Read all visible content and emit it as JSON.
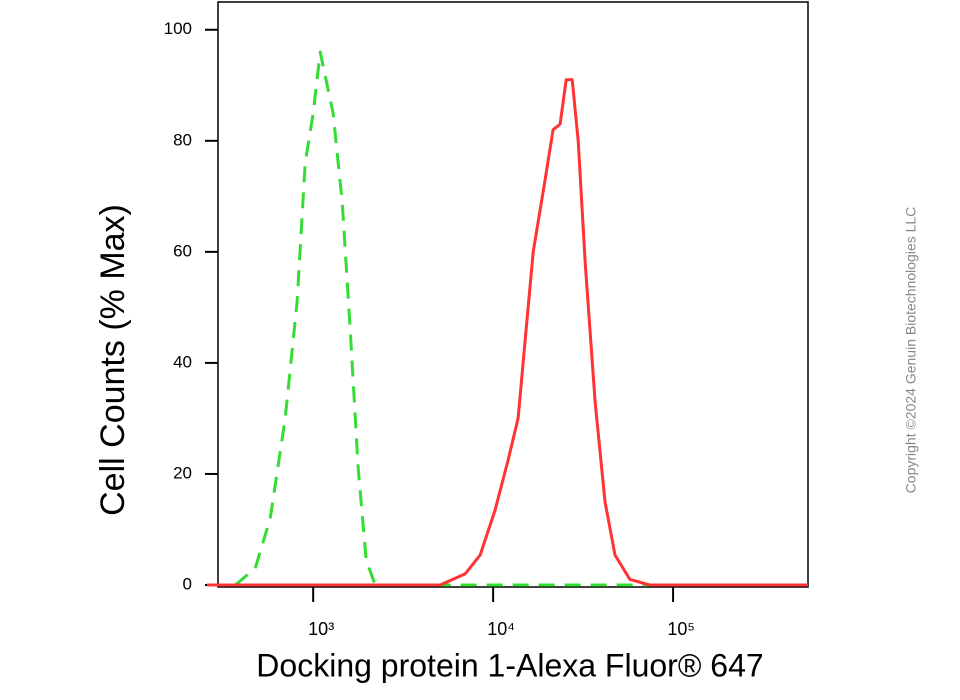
{
  "chart_data": {
    "type": "line",
    "x_label": "Docking protein 1-Alexa Fluor® 647",
    "y_label": "Cell Counts (% Max)",
    "copyright": "Copyright ©2024 Genuin Biotechnologies LLC",
    "x_scale": "log",
    "xlim": [
      257,
      562000
    ],
    "ylim": [
      0,
      105
    ],
    "xticks": [
      {
        "value": 1000,
        "label": "10³"
      },
      {
        "value": 10000,
        "label": "10⁴"
      },
      {
        "value": 100000,
        "label": "10⁵"
      }
    ],
    "yticks": [
      0,
      20,
      40,
      60,
      80,
      100
    ],
    "series": [
      {
        "color": "#33dd33",
        "style": "dashed",
        "x": [
          265,
          369,
          476,
          577,
          699,
          814,
          903,
          1000,
          1094,
          1196,
          1291,
          1449,
          1605,
          1778,
          1970,
          2210,
          562000
        ],
        "values": [
          0,
          0,
          3,
          12,
          30,
          51,
          76,
          85,
          96,
          90,
          85,
          69,
          46,
          21,
          4.5,
          0,
          0
        ]
      },
      {
        "color": "#ff3333",
        "style": "solid",
        "x": [
          257,
          5080,
          6990,
          8470,
          10260,
          12110,
          13760,
          15060,
          16700,
          19450,
          21540,
          23570,
          25460,
          27490,
          29700,
          32460,
          36870,
          41870,
          47540,
          57550,
          74160,
          562000
        ],
        "values": [
          0,
          0,
          2,
          5.4,
          13.5,
          22.5,
          30,
          44,
          60,
          73,
          82,
          83,
          91,
          91,
          80,
          58,
          33,
          15,
          5.4,
          1,
          0,
          0
        ]
      }
    ]
  }
}
